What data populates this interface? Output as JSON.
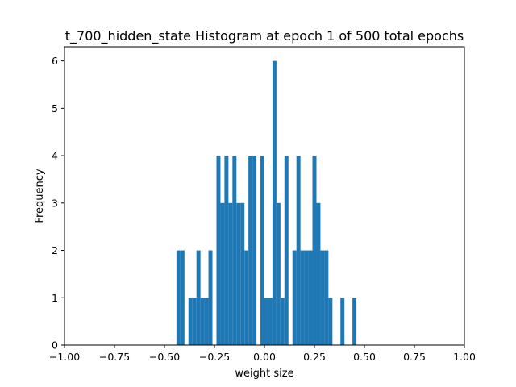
{
  "chart_data": {
    "type": "bar",
    "title": "t_700_hidden_state Histogram at epoch 1 of 500 total epochs",
    "xlabel": "weight size",
    "ylabel": "Frequency",
    "xlim": [
      -1.0,
      1.0
    ],
    "ylim": [
      0,
      6.3
    ],
    "xticks": [
      -1.0,
      -0.75,
      -0.5,
      -0.25,
      0.0,
      0.25,
      0.5,
      0.75,
      1.0
    ],
    "xtick_labels": [
      "−1.00",
      "−0.75",
      "−0.50",
      "−0.25",
      "0.00",
      "0.25",
      "0.50",
      "0.75",
      "1.00"
    ],
    "yticks": [
      0,
      1,
      2,
      3,
      4,
      5,
      6
    ],
    "ytick_labels": [
      "0",
      "1",
      "2",
      "3",
      "4",
      "5",
      "6"
    ],
    "bin_width": 0.02,
    "color": "#1f77b4",
    "grid": false,
    "bins": [
      {
        "x": -0.43,
        "count": 2
      },
      {
        "x": -0.41,
        "count": 2
      },
      {
        "x": -0.37,
        "count": 1
      },
      {
        "x": -0.35,
        "count": 1
      },
      {
        "x": -0.33,
        "count": 2
      },
      {
        "x": -0.31,
        "count": 1
      },
      {
        "x": -0.29,
        "count": 1
      },
      {
        "x": -0.27,
        "count": 2
      },
      {
        "x": -0.23,
        "count": 4
      },
      {
        "x": -0.21,
        "count": 3
      },
      {
        "x": -0.19,
        "count": 4
      },
      {
        "x": -0.17,
        "count": 3
      },
      {
        "x": -0.15,
        "count": 4
      },
      {
        "x": -0.13,
        "count": 3
      },
      {
        "x": -0.11,
        "count": 3
      },
      {
        "x": -0.09,
        "count": 2
      },
      {
        "x": -0.07,
        "count": 4
      },
      {
        "x": -0.05,
        "count": 4
      },
      {
        "x": -0.01,
        "count": 4
      },
      {
        "x": 0.01,
        "count": 1
      },
      {
        "x": 0.03,
        "count": 1
      },
      {
        "x": 0.05,
        "count": 6
      },
      {
        "x": 0.07,
        "count": 3
      },
      {
        "x": 0.09,
        "count": 1
      },
      {
        "x": 0.11,
        "count": 4
      },
      {
        "x": 0.15,
        "count": 2
      },
      {
        "x": 0.17,
        "count": 4
      },
      {
        "x": 0.19,
        "count": 2
      },
      {
        "x": 0.21,
        "count": 2
      },
      {
        "x": 0.23,
        "count": 2
      },
      {
        "x": 0.25,
        "count": 4
      },
      {
        "x": 0.27,
        "count": 3
      },
      {
        "x": 0.29,
        "count": 2
      },
      {
        "x": 0.31,
        "count": 2
      },
      {
        "x": 0.33,
        "count": 1
      },
      {
        "x": 0.39,
        "count": 1
      },
      {
        "x": 0.45,
        "count": 1
      }
    ]
  }
}
